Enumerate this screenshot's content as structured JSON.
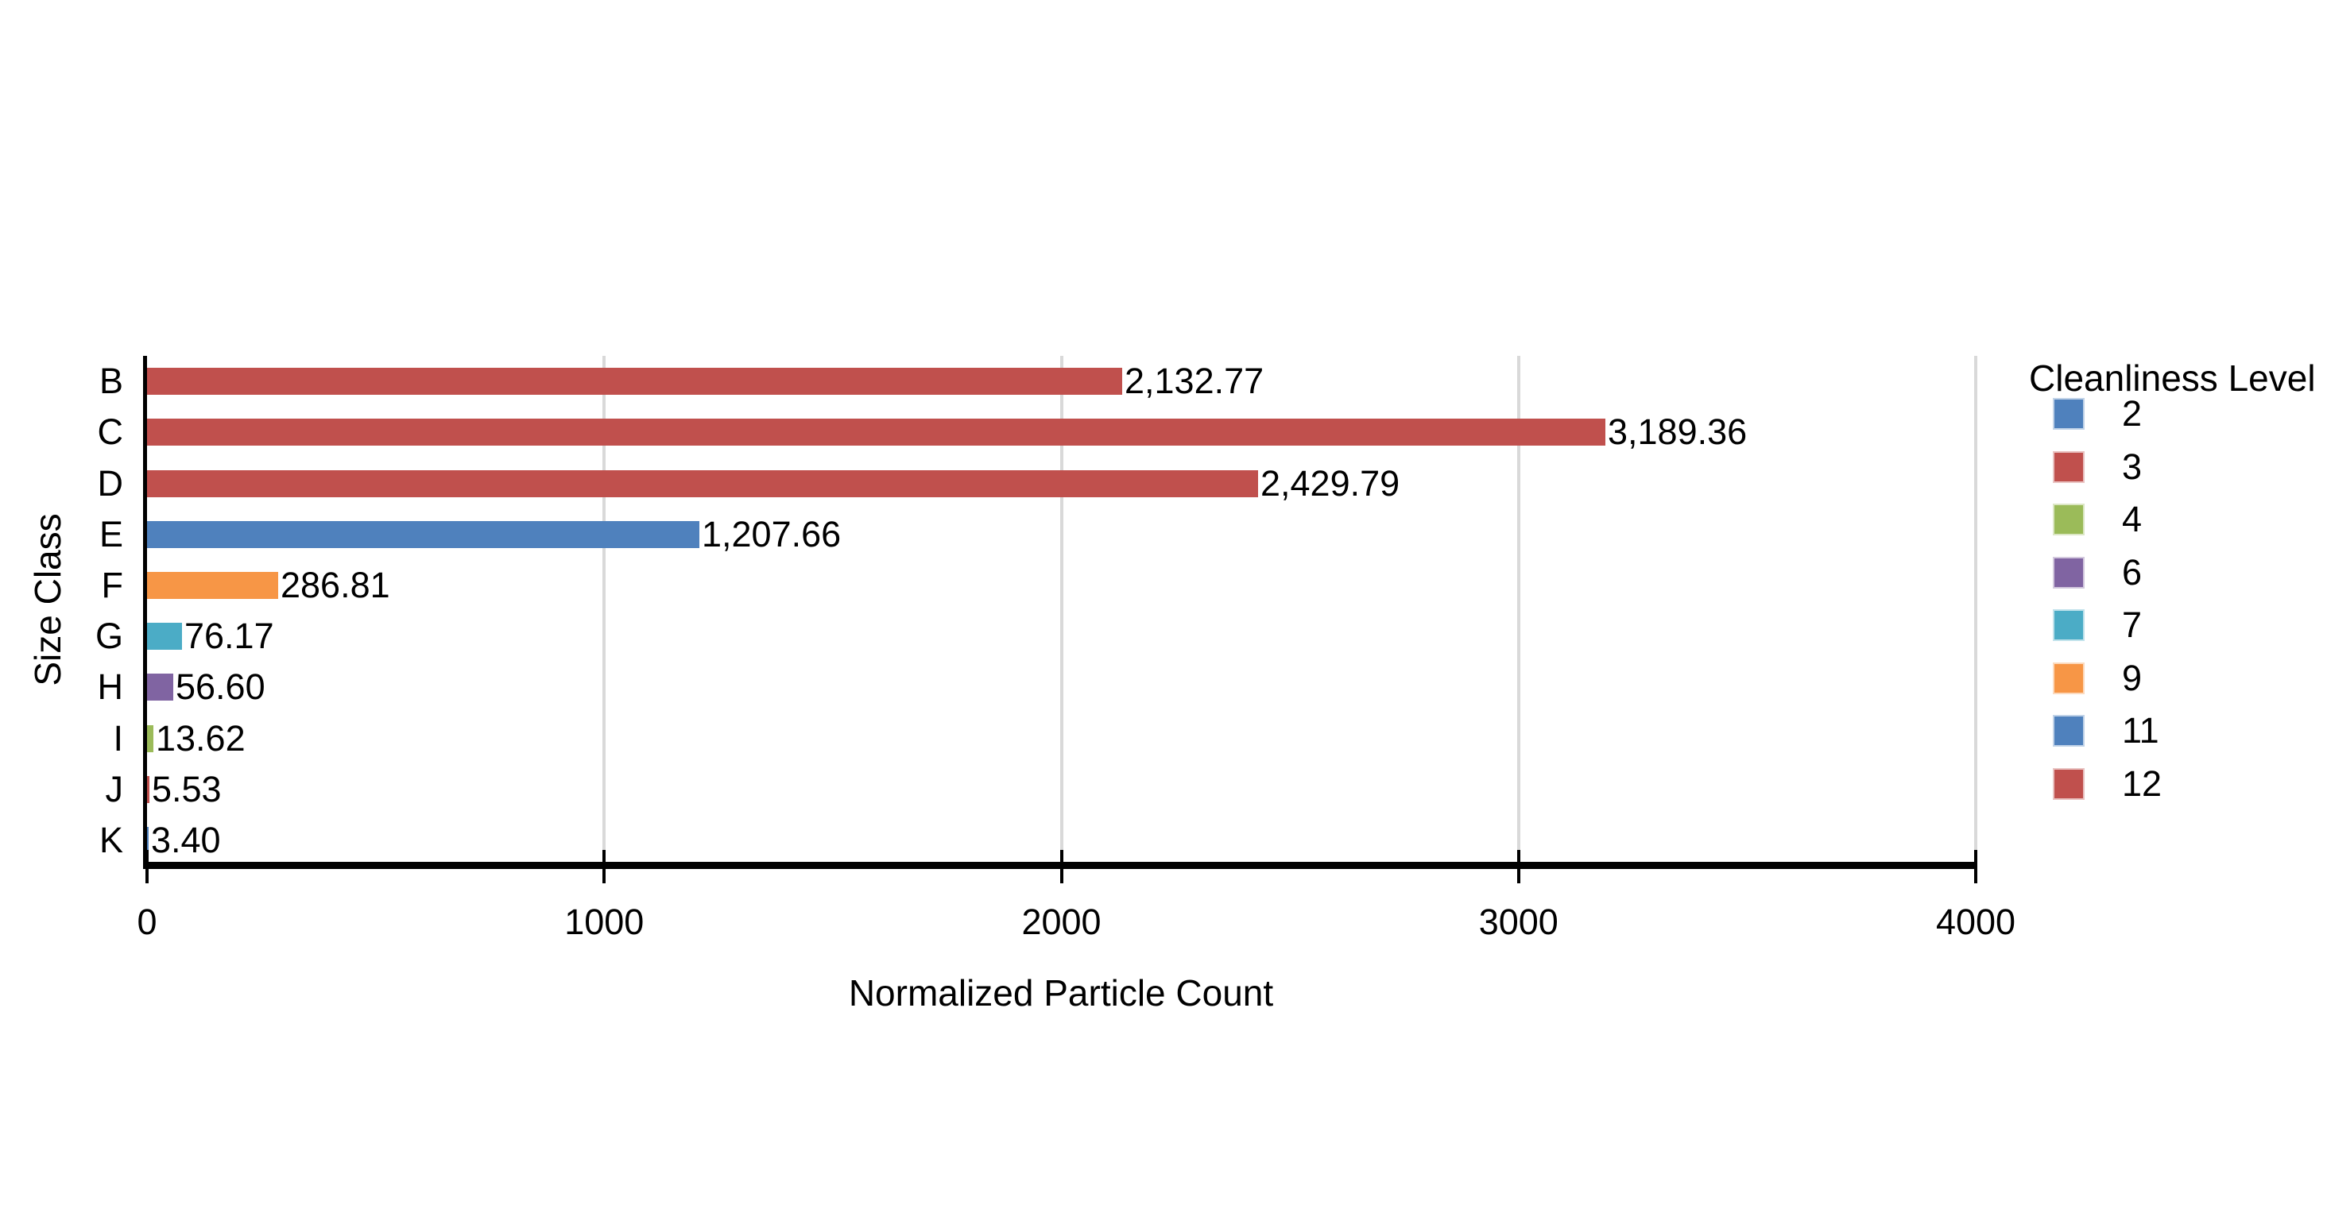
{
  "chart_data": {
    "type": "bar",
    "orientation": "horizontal",
    "title": "",
    "xlabel": "Normalized Particle Count",
    "ylabel": "Size Class",
    "xlim": [
      0,
      4000
    ],
    "xticks": [
      0,
      1000,
      2000,
      3000,
      4000
    ],
    "xtick_labels": [
      "0",
      "1000",
      "2000",
      "3000",
      "4000"
    ],
    "grid": "vertical gridlines at 1000, 2000, 3000, 4000",
    "categories": [
      "B",
      "C",
      "D",
      "E",
      "F",
      "G",
      "H",
      "I",
      "J",
      "K"
    ],
    "values": [
      2132.77,
      3189.36,
      2429.79,
      1207.66,
      286.81,
      76.17,
      56.6,
      13.62,
      5.53,
      3.4
    ],
    "value_labels": [
      "2,132.77",
      "3,189.36",
      "2,429.79",
      "1,207.66",
      "286.81",
      "76.17",
      "56.60",
      "13.62",
      "5.53",
      "3.40"
    ],
    "bar_levels": [
      12,
      12,
      12,
      11,
      9,
      7,
      6,
      4,
      3,
      2
    ],
    "bar_colors": [
      "#C0504D",
      "#C0504D",
      "#C0504D",
      "#4F81BD",
      "#F79646",
      "#4BACC6",
      "#8064A2",
      "#9BBB59",
      "#C0504D",
      "#4F81BD"
    ],
    "legend": {
      "title": "Cleanliness Level",
      "position": "right",
      "entries": [
        {
          "label": "2",
          "color": "#4F81BD"
        },
        {
          "label": "3",
          "color": "#C0504D"
        },
        {
          "label": "4",
          "color": "#9BBB59"
        },
        {
          "label": "6",
          "color": "#8064A2"
        },
        {
          "label": "7",
          "color": "#4BACC6"
        },
        {
          "label": "9",
          "color": "#F79646"
        },
        {
          "label": "11",
          "color": "#4F81BD"
        },
        {
          "label": "12",
          "color": "#C0504D"
        }
      ]
    },
    "colors": {
      "axis": "#000000",
      "gridline": "#D9D9D9",
      "text": "#000000",
      "background": "#FFFFFF"
    }
  }
}
